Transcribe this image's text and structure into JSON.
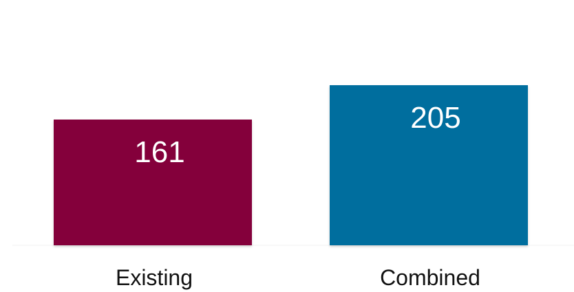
{
  "chart_data": {
    "type": "bar",
    "categories": [
      "Existing",
      "Combined"
    ],
    "values": [
      161,
      205
    ],
    "colors": [
      "#84003A",
      "#006E9E"
    ],
    "value_labels_inside_bars": true,
    "grid": false,
    "legend": "none",
    "ylim": [
      0,
      300
    ]
  }
}
